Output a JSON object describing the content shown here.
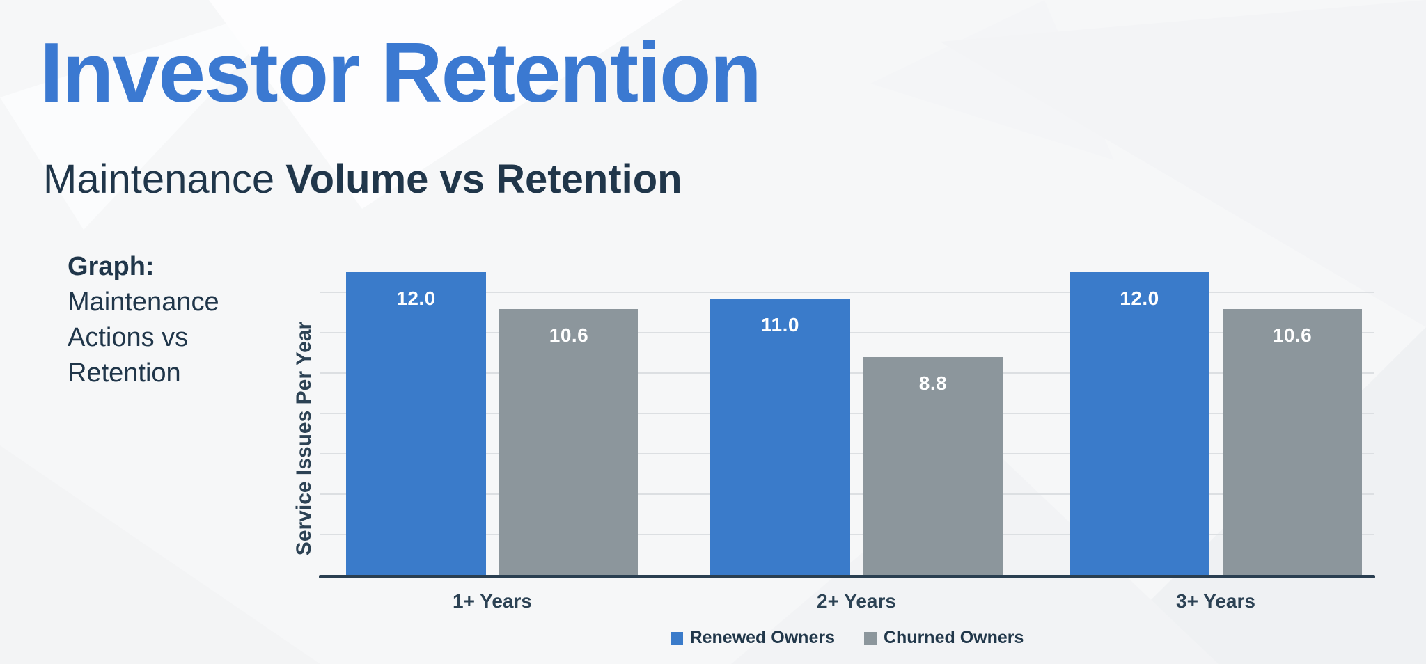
{
  "slide": {
    "title": "Investor Retention",
    "subtitle": {
      "regular": "Maintenance ",
      "bold": "Volume vs Retention"
    },
    "caption": {
      "label": "Graph:",
      "lines": [
        "Maintenance",
        "Actions vs",
        "Retention"
      ]
    }
  },
  "chart_data": {
    "type": "bar",
    "categories": [
      "1+ Years",
      "2+ Years",
      "3+ Years"
    ],
    "series": [
      {
        "name": "Renewed Owners",
        "color": "#3a7bca",
        "values": [
          12.0,
          11.0,
          12.0
        ]
      },
      {
        "name": "Churned Owners",
        "color": "#8c969c",
        "values": [
          10.6,
          8.8,
          10.6
        ]
      }
    ],
    "ylabel": "Service Issues Per Year",
    "xlabel": "",
    "value_labels": [
      "12.0",
      "10.6",
      "11.0",
      "8.8",
      "12.0",
      "10.6"
    ],
    "value_label_decimals": 1,
    "legend_position": "bottom",
    "grid": "horizontal",
    "gridline_count": 7,
    "ylim": [
      0,
      13
    ]
  },
  "colors": {
    "title_blue": "#3b79d1",
    "heading_navy": "#20364a",
    "axis_text": "#2c4254",
    "bar_blue": "#3a7bca",
    "bar_gray": "#8c969c",
    "value_text": "#ffffff",
    "gridline": "#dcdfe2",
    "axis_line": "#2a3f51",
    "background": "#f6f7f8"
  }
}
